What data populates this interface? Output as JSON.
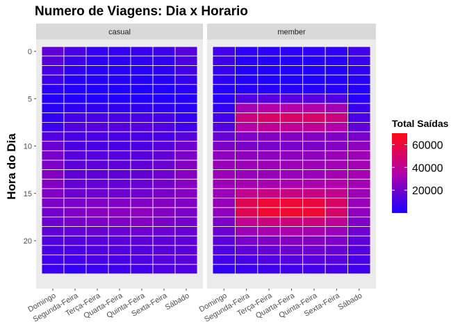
{
  "chart_data": {
    "type": "heatmap",
    "title": "Numero de Viagens: Dia x Horario",
    "xlabel": "",
    "ylabel": "Hora do Dia",
    "categories": [
      "Domingo",
      "Segunda-Feira",
      "Terça-Feira",
      "Quarta-Feira",
      "Quinta-Feira",
      "Sexta-Feira",
      "Sábado"
    ],
    "y_ticks": [
      0,
      5,
      10,
      15,
      20
    ],
    "y_range": [
      0,
      23
    ],
    "legend": {
      "title": "Total Saídas",
      "ticks": [
        20000,
        40000,
        60000
      ],
      "tick_labels": [
        "20000",
        "40000",
        "60000"
      ],
      "range": [
        0,
        70000
      ],
      "color_low": "#1a00ff",
      "color_mid": "#b300a8",
      "color_high": "#ff0a14"
    },
    "panels": [
      {
        "label": "casual",
        "values": [
          [
            16000,
            10500,
            6000,
            6000,
            6500,
            8000,
            13500
          ],
          [
            14000,
            7500,
            4000,
            4000,
            4500,
            5500,
            11500
          ],
          [
            11000,
            5000,
            3000,
            3000,
            3000,
            4000,
            9500
          ],
          [
            8000,
            2500,
            2000,
            2000,
            2000,
            2500,
            6000
          ],
          [
            4000,
            1500,
            1500,
            1500,
            1500,
            1500,
            3500
          ],
          [
            2500,
            2000,
            2000,
            2000,
            2000,
            2000,
            2500
          ],
          [
            3500,
            5000,
            5500,
            5500,
            5500,
            5000,
            3500
          ],
          [
            5500,
            9500,
            10500,
            10500,
            10500,
            9500,
            6000
          ],
          [
            8000,
            12500,
            13500,
            13500,
            13500,
            12500,
            9000
          ],
          [
            12500,
            10500,
            11000,
            11000,
            11000,
            11000,
            13500
          ],
          [
            18000,
            11500,
            11000,
            11000,
            11500,
            13500,
            19000
          ],
          [
            21500,
            14000,
            13500,
            13500,
            14000,
            16500,
            22500
          ],
          [
            23000,
            15500,
            15500,
            15500,
            16000,
            18500,
            24000
          ],
          [
            24000,
            16000,
            16000,
            16000,
            16500,
            19500,
            25000
          ],
          [
            24000,
            16500,
            17000,
            17000,
            17500,
            20500,
            25000
          ],
          [
            23500,
            18500,
            19000,
            19000,
            19500,
            22000,
            24500
          ],
          [
            22500,
            21500,
            23000,
            23000,
            23500,
            24000,
            23500
          ],
          [
            20500,
            23500,
            25500,
            25500,
            26000,
            24000,
            22000
          ],
          [
            19000,
            21500,
            23000,
            23500,
            24000,
            22000,
            20500
          ],
          [
            16000,
            16500,
            18000,
            18500,
            19000,
            18500,
            18000
          ],
          [
            12500,
            13000,
            14000,
            14500,
            15000,
            15000,
            15500
          ],
          [
            10500,
            11000,
            12000,
            12500,
            13000,
            14000,
            14500
          ],
          [
            9000,
            9000,
            10500,
            11000,
            12000,
            13500,
            14000
          ],
          [
            7000,
            6000,
            7000,
            8000,
            9000,
            12000,
            12000
          ]
        ]
      },
      {
        "label": "member",
        "values": [
          [
            9000,
            4500,
            4000,
            4000,
            4500,
            5000,
            8500
          ],
          [
            8000,
            3000,
            2500,
            2500,
            2500,
            3000,
            7000
          ],
          [
            6000,
            2000,
            1500,
            1500,
            1500,
            2000,
            5000
          ],
          [
            4000,
            1500,
            1000,
            1000,
            1000,
            1500,
            3000
          ],
          [
            2500,
            2500,
            2500,
            2500,
            2500,
            2500,
            2000
          ],
          [
            3500,
            12000,
            13500,
            13500,
            13500,
            12000,
            3500
          ],
          [
            6000,
            31000,
            35000,
            35000,
            34500,
            31000,
            7000
          ],
          [
            9000,
            45000,
            50500,
            50500,
            50500,
            45000,
            11000
          ],
          [
            13000,
            36000,
            40000,
            40000,
            39500,
            35000,
            16000
          ],
          [
            17500,
            23000,
            24000,
            24000,
            24000,
            23500,
            21500
          ],
          [
            22500,
            22000,
            21500,
            21500,
            22000,
            24500,
            26500
          ],
          [
            26500,
            26500,
            26000,
            26000,
            26500,
            29000,
            30000
          ],
          [
            28500,
            29500,
            29500,
            29500,
            30000,
            31000,
            31000
          ],
          [
            29500,
            29000,
            28500,
            29000,
            29500,
            31500,
            31500
          ],
          [
            29500,
            31500,
            32000,
            32500,
            33000,
            34500,
            31000
          ],
          [
            29000,
            41000,
            44000,
            44500,
            44000,
            41500,
            30000
          ],
          [
            28000,
            55000,
            61500,
            62000,
            60000,
            51500,
            28500
          ],
          [
            26000,
            55000,
            63000,
            63500,
            62000,
            50000,
            26500
          ],
          [
            22500,
            41000,
            45000,
            46000,
            45500,
            39000,
            23500
          ],
          [
            18500,
            29500,
            32000,
            33000,
            32500,
            29000,
            19500
          ],
          [
            14500,
            21500,
            23000,
            24000,
            24000,
            22500,
            15500
          ],
          [
            11500,
            15500,
            17000,
            18000,
            18500,
            17500,
            12500
          ],
          [
            9000,
            11000,
            12000,
            13000,
            13500,
            13500,
            11000
          ],
          [
            6000,
            7000,
            8000,
            8500,
            9500,
            10500,
            8500
          ]
        ]
      }
    ]
  }
}
